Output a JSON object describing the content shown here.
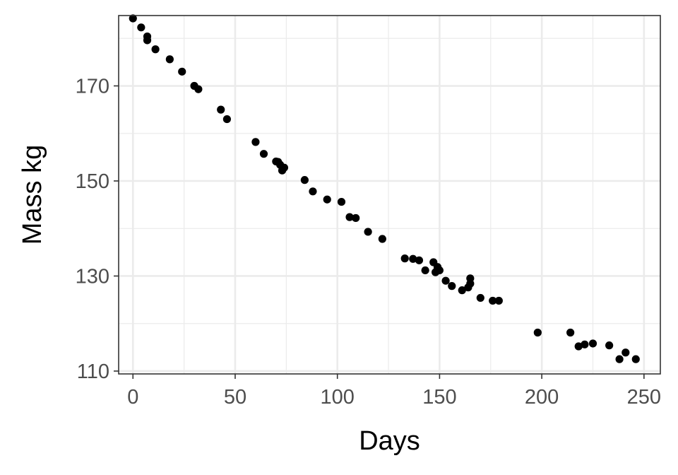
{
  "chart_data": {
    "type": "scatter",
    "title": "",
    "xlabel": "Days",
    "ylabel": "Mass kg",
    "xlim": [
      -7,
      258
    ],
    "ylim": [
      109.4,
      184.8
    ],
    "xticks": [
      0,
      50,
      100,
      150,
      200,
      250
    ],
    "yticks": [
      110,
      130,
      150,
      170
    ],
    "xminor": [
      25,
      75,
      125,
      175,
      225
    ],
    "yminor": [
      120,
      140,
      160,
      180
    ],
    "grid": true,
    "legend": "none",
    "point_color": "#000000",
    "x": [
      0,
      4,
      7,
      7,
      11,
      18,
      24,
      30,
      32,
      43,
      46,
      60,
      64,
      70,
      71,
      72,
      73,
      74,
      84,
      88,
      95,
      102,
      106,
      109,
      115,
      122,
      133,
      137,
      140,
      143,
      147,
      148,
      149,
      150,
      153,
      156,
      161,
      164,
      165,
      165,
      170,
      176,
      179,
      198,
      214,
      218,
      221,
      225,
      233,
      238,
      241,
      246
    ],
    "y": [
      184.2,
      182.3,
      180.4,
      179.6,
      177.7,
      175.6,
      173.0,
      170.0,
      169.3,
      165.0,
      163.0,
      158.2,
      155.7,
      154.1,
      154.0,
      153.4,
      152.2,
      152.8,
      150.2,
      147.8,
      146.1,
      145.6,
      142.4,
      142.2,
      139.3,
      137.8,
      133.7,
      133.6,
      133.3,
      131.2,
      132.9,
      130.8,
      131.9,
      131.2,
      129.0,
      127.9,
      127.0,
      127.6,
      128.4,
      129.5,
      125.4,
      124.8,
      124.8,
      118.1,
      118.1,
      115.2,
      115.6,
      115.8,
      115.4,
      112.5,
      113.9,
      112.5
    ]
  }
}
